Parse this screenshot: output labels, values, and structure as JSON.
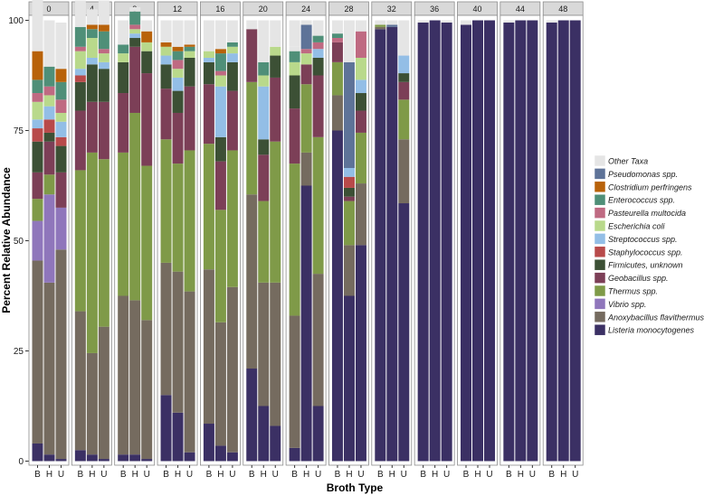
{
  "chart_data": {
    "type": "stacked-bar-faceted",
    "title": "",
    "xlabel": "Broth Type",
    "ylabel": "Percent Relative Abundance",
    "ylim": [
      0,
      100
    ],
    "yticks": [
      0,
      25,
      50,
      75,
      100
    ],
    "categories": [
      "B",
      "H",
      "U"
    ],
    "legend_position": "right",
    "legend": [
      {
        "name": "Other Taxa",
        "color": "#e5e5e5"
      },
      {
        "name": "Pseudomonas spp.",
        "color": "#5e7398"
      },
      {
        "name": "Clostridium perfringens",
        "color": "#b8620a"
      },
      {
        "name": "Enterococcus spp.",
        "color": "#4f8f78"
      },
      {
        "name": "Pasteurella multocida",
        "color": "#bf6a82"
      },
      {
        "name": "Escherichia coli",
        "color": "#b9d98b"
      },
      {
        "name": "Streptococcus spp.",
        "color": "#93bee6"
      },
      {
        "name": "Staphylococcus spp.",
        "color": "#b84a4a"
      },
      {
        "name": "Firmicutes, unknown",
        "color": "#3c5035"
      },
      {
        "name": "Geobacillus spp.",
        "color": "#7c3f57"
      },
      {
        "name": "Thermus spp.",
        "color": "#7f9a48"
      },
      {
        "name": "Vibrio spp.",
        "color": "#8f76bb"
      },
      {
        "name": "Anoxybacillus flavithermus",
        "color": "#756b5f"
      },
      {
        "name": "Listeria monocytogenes",
        "color": "#3b3064"
      }
    ],
    "facets": [
      {
        "label": "0",
        "bars": [
          [
            4,
            41.5,
            9,
            5,
            6,
            7,
            3,
            2,
            4,
            2,
            3,
            6.5,
            0,
            0,
            12.5
          ],
          [
            1.5,
            39,
            20,
            4.5,
            7.5,
            2,
            3,
            3,
            2.5,
            2,
            4.5,
            0,
            0,
            0,
            10.5
          ],
          [
            0.5,
            47.5,
            9.5,
            0,
            8,
            6,
            2,
            3.5,
            2,
            3,
            4,
            3,
            0,
            0,
            10.5
          ]
        ]
      },
      {
        "label": "4",
        "bars": [
          [
            2.5,
            31.5,
            0,
            32,
            13.5,
            6.5,
            1.5,
            1.5,
            4,
            1,
            4.5,
            0,
            0,
            0,
            6
          ],
          [
            1.5,
            23,
            0,
            45.5,
            11.5,
            8.5,
            0,
            1.5,
            4.5,
            0,
            2,
            1,
            0,
            0,
            3.5
          ],
          [
            0.5,
            30,
            0,
            38,
            13,
            7.5,
            0,
            1.5,
            2,
            1,
            4,
            1.5,
            0,
            0,
            5.5
          ]
        ]
      },
      {
        "label": "8",
        "bars": [
          [
            1.5,
            36,
            0,
            32.5,
            13.5,
            7,
            0,
            0,
            2,
            0,
            2,
            0,
            0,
            0,
            5.5
          ],
          [
            1.5,
            35,
            0,
            42.5,
            15,
            2,
            0,
            1,
            1,
            1,
            3,
            0,
            0,
            0,
            1
          ],
          [
            0.5,
            31.5,
            0,
            35,
            21,
            5,
            0,
            0,
            2,
            0,
            0,
            2.5,
            0,
            0,
            2.5
          ]
        ]
      },
      {
        "label": "12",
        "bars": [
          [
            15,
            30,
            0,
            28,
            11.5,
            5.5,
            0,
            2,
            2,
            0,
            0,
            1,
            0,
            0,
            5
          ],
          [
            11,
            32,
            0,
            24.5,
            11.5,
            5,
            0,
            3,
            2,
            2,
            2,
            1,
            0,
            0,
            6
          ],
          [
            2,
            36.5,
            0,
            32,
            14.5,
            6.5,
            0,
            0,
            1.5,
            0,
            1,
            0.5,
            0,
            0,
            5.5
          ]
        ]
      },
      {
        "label": "16",
        "bars": [
          [
            8.5,
            35,
            0,
            28.5,
            13.5,
            5,
            0,
            1,
            1.5,
            0,
            0,
            0,
            0,
            0,
            7
          ],
          [
            3.5,
            28,
            0,
            25.5,
            11,
            5.5,
            0,
            11.5,
            2.5,
            1,
            4,
            1,
            0,
            0,
            6.5
          ],
          [
            2,
            37.5,
            0,
            31,
            13.5,
            6.5,
            0,
            2,
            1.5,
            0,
            1,
            0,
            0,
            0,
            5
          ]
        ]
      },
      {
        "label": "20",
        "bars": [
          [
            21,
            39.5,
            0,
            25.5,
            12,
            0,
            0,
            0,
            0,
            0,
            0,
            0,
            1.5,
            0,
            0.5
          ],
          [
            12.5,
            28,
            0,
            18.5,
            10.5,
            3.5,
            0,
            12,
            2.5,
            0,
            3,
            0,
            1,
            0,
            8.5
          ],
          [
            8,
            32.5,
            0,
            32,
            14.5,
            5,
            0,
            0,
            2,
            0,
            0,
            0,
            1.5,
            0,
            4.5
          ]
        ]
      },
      {
        "label": "24",
        "bars": [
          [
            3,
            30,
            0,
            34.5,
            12.5,
            7.5,
            0,
            0,
            3,
            0,
            2.5,
            0,
            1,
            0,
            6
          ],
          [
            62.5,
            7.5,
            0,
            15.5,
            4.5,
            0,
            0,
            0,
            2.5,
            1,
            0,
            0,
            0,
            5.5,
            1
          ],
          [
            12.5,
            30,
            0,
            31,
            14,
            4,
            0,
            2,
            0,
            1.5,
            1.5,
            0,
            0,
            0,
            3.5
          ]
        ]
      },
      {
        "label": "28",
        "bars": [
          [
            75,
            8,
            0,
            7.5,
            4.5,
            0,
            0,
            0,
            0,
            1,
            1,
            0,
            0,
            0,
            3
          ],
          [
            37.5,
            11.5,
            0,
            10,
            1,
            2,
            2.5,
            2,
            0,
            0,
            0,
            0,
            0,
            24,
            9.5
          ],
          [
            49,
            14,
            0,
            11.5,
            5,
            4,
            0,
            3,
            5,
            6,
            0,
            0,
            0,
            0,
            2.5
          ]
        ]
      },
      {
        "label": "32",
        "bars": [
          [
            98,
            0.5,
            0,
            0.5,
            0,
            0,
            0,
            0,
            0,
            0,
            0,
            0,
            0,
            0,
            1
          ],
          [
            98.5,
            0,
            0,
            0,
            0,
            0,
            0,
            0,
            0,
            0,
            0,
            0,
            0,
            0.5,
            1
          ],
          [
            58.5,
            14.5,
            0,
            9,
            4,
            2,
            0,
            4,
            0,
            0,
            0,
            0,
            0,
            0,
            8
          ]
        ]
      },
      {
        "label": "36",
        "bars": [
          [
            99.5,
            0,
            0,
            0,
            0,
            0,
            0,
            0,
            0,
            0,
            0,
            0,
            0,
            0,
            0.5
          ],
          [
            100,
            0,
            0,
            0,
            0,
            0,
            0,
            0,
            0,
            0,
            0,
            0,
            0,
            0,
            0
          ],
          [
            99.5,
            0,
            0,
            0,
            0,
            0,
            0,
            0,
            0,
            0,
            0,
            0,
            0,
            0,
            0.5
          ]
        ]
      },
      {
        "label": "40",
        "bars": [
          [
            99,
            0,
            0,
            0,
            0,
            0,
            0,
            0,
            0,
            0,
            0,
            0,
            0,
            0,
            1
          ],
          [
            100,
            0,
            0,
            0,
            0,
            0,
            0,
            0,
            0,
            0,
            0,
            0,
            0,
            0,
            0
          ],
          [
            100,
            0,
            0,
            0,
            0,
            0,
            0,
            0,
            0,
            0,
            0,
            0,
            0,
            0,
            0
          ]
        ]
      },
      {
        "label": "44",
        "bars": [
          [
            99.5,
            0,
            0,
            0,
            0,
            0,
            0,
            0,
            0,
            0,
            0,
            0,
            0,
            0,
            0.5
          ],
          [
            100,
            0,
            0,
            0,
            0,
            0,
            0,
            0,
            0,
            0,
            0,
            0,
            0,
            0,
            0
          ],
          [
            100,
            0,
            0,
            0,
            0,
            0,
            0,
            0,
            0,
            0,
            0,
            0,
            0,
            0,
            0
          ]
        ]
      },
      {
        "label": "48",
        "bars": [
          [
            99.5,
            0,
            0,
            0,
            0,
            0,
            0,
            0,
            0,
            0,
            0,
            0,
            0,
            0,
            0.5
          ],
          [
            100,
            0,
            0,
            0,
            0,
            0,
            0,
            0,
            0,
            0,
            0,
            0,
            0,
            0,
            0
          ],
          [
            100,
            0,
            0,
            0,
            0,
            0,
            0,
            0,
            0,
            0,
            0,
            0,
            0,
            0,
            0
          ]
        ]
      }
    ],
    "stack_order_bottom_to_top": [
      "Listeria monocytogenes",
      "Anoxybacillus flavithermus",
      "Vibrio spp.",
      "Thermus spp.",
      "Geobacillus spp.",
      "Firmicutes, unknown",
      "Staphylococcus spp.",
      "Streptococcus spp.",
      "Escherichia coli",
      "Pasteurella multocida",
      "Enterococcus spp.",
      "Clostridium perfringens",
      "Other Taxa (upper block)",
      "Pseudomonas spp.",
      "Other Taxa"
    ]
  }
}
